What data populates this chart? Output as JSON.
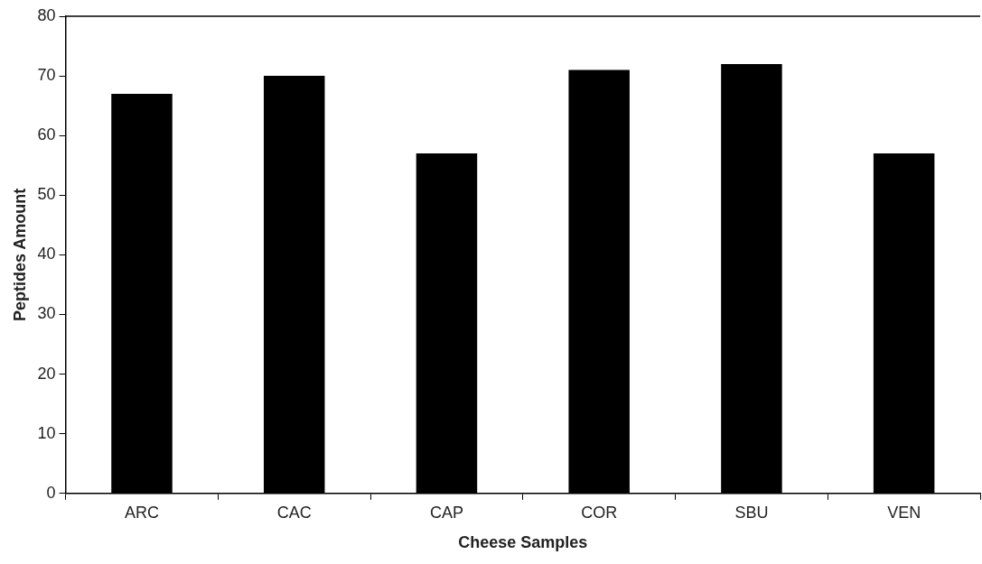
{
  "chart_data": {
    "type": "bar",
    "xlabel": "Cheese Samples",
    "ylabel": "Peptides Amount",
    "categories": [
      "ARC",
      "CAC",
      "CAP",
      "COR",
      "SBU",
      "VEN"
    ],
    "values": [
      67,
      70,
      57,
      71,
      72,
      57
    ],
    "color": "#000000",
    "ylim": [
      0,
      80
    ],
    "yticks": [
      0,
      10,
      20,
      30,
      40,
      50,
      60,
      70,
      80
    ],
    "grid": false,
    "legend": false
  }
}
